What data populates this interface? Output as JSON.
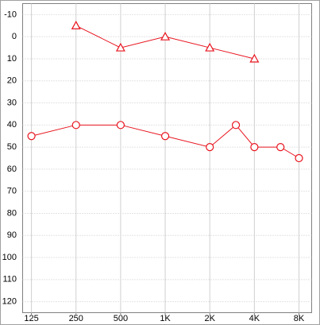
{
  "chart_data": {
    "type": "line",
    "x_scale": "log",
    "xlim": [
      109,
      9745
    ],
    "xticks": [
      125,
      250,
      500,
      {
        "value": 1000,
        "label": "1K"
      },
      {
        "value": 2000,
        "label": "2K"
      },
      {
        "value": 4000,
        "label": "4K"
      },
      {
        "value": 8000,
        "label": "8K"
      }
    ],
    "ylim": [
      125,
      -15
    ],
    "yticks": [
      -10,
      0,
      10,
      20,
      30,
      40,
      50,
      60,
      70,
      80,
      90,
      100,
      110,
      120
    ],
    "grid": true,
    "series": [
      {
        "color": "#e8141e",
        "marker": "triangle",
        "x": [
          250,
          500,
          1000,
          2000,
          4000
        ],
        "values": [
          -5,
          5,
          0,
          5,
          10
        ]
      },
      {
        "color": "#e8141e",
        "marker": "circle",
        "x": [
          125,
          250,
          500,
          1000,
          2000,
          3000,
          4000,
          6000,
          8000
        ],
        "values": [
          45,
          40,
          40,
          45,
          50,
          40,
          50,
          50,
          55
        ]
      }
    ]
  }
}
